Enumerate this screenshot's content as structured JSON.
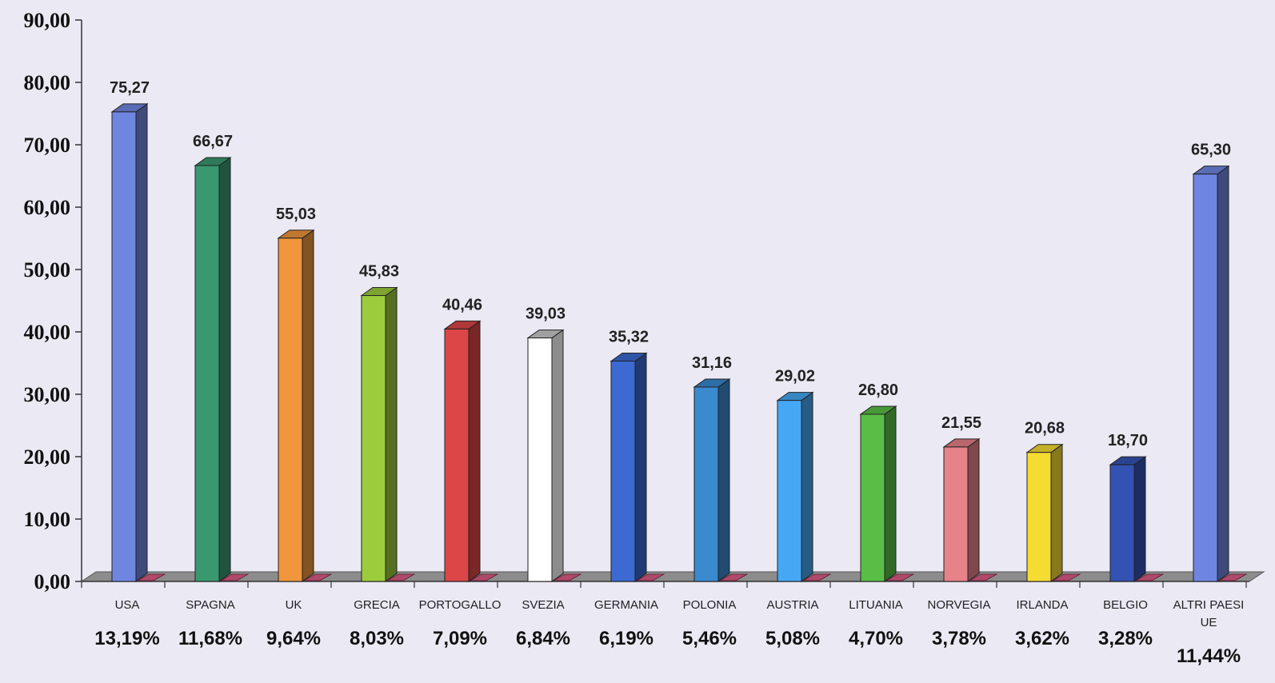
{
  "chart_data": {
    "type": "bar",
    "categories": [
      "USA",
      "SPAGNA",
      "UK",
      "GRECIA",
      "PORTOGALLO",
      "SVEZIA",
      "GERMANIA",
      "POLONIA",
      "AUSTRIA",
      "LITUANIA",
      "NORVEGIA",
      "IRLANDA",
      "BELGIO",
      "ALTRI PAESI UE"
    ],
    "category_lines": [
      [
        "USA"
      ],
      [
        "SPAGNA"
      ],
      [
        "UK"
      ],
      [
        "GRECIA"
      ],
      [
        "PORTOGALLO"
      ],
      [
        "SVEZIA"
      ],
      [
        "GERMANIA"
      ],
      [
        "POLONIA"
      ],
      [
        "AUSTRIA"
      ],
      [
        "LITUANIA"
      ],
      [
        "NORVEGIA"
      ],
      [
        "IRLANDA"
      ],
      [
        "BELGIO"
      ],
      [
        "ALTRI PAESI",
        "UE"
      ]
    ],
    "values": [
      75.27,
      66.67,
      55.03,
      45.83,
      40.46,
      39.03,
      35.32,
      31.16,
      29.02,
      26.8,
      21.55,
      20.68,
      18.7,
      65.3
    ],
    "value_labels": [
      "75,27",
      "66,67",
      "55,03",
      "45,83",
      "40,46",
      "39,03",
      "35,32",
      "31,16",
      "29,02",
      "26,80",
      "21,55",
      "20,68",
      "18,70",
      "65,30"
    ],
    "percentages": [
      "13,19%",
      "11,68%",
      "9,64%",
      "8,03%",
      "7,09%",
      "6,84%",
      "6,19%",
      "5,46%",
      "5,08%",
      "4,70%",
      "3,78%",
      "3,62%",
      "3,28%",
      "11,44%"
    ],
    "colors": [
      "#6f86e0",
      "#3a9870",
      "#f0963c",
      "#9ccc3c",
      "#dc4646",
      "#ffffff",
      "#3c6ad2",
      "#3a8ad0",
      "#46a8f5",
      "#5abe46",
      "#e68288",
      "#f5dc32",
      "#3452b4",
      "#6f86e0"
    ],
    "ylim": [
      0,
      90
    ],
    "yticks": [
      0,
      10,
      20,
      30,
      40,
      50,
      60,
      70,
      80,
      90
    ],
    "ytick_labels": [
      "0,00",
      "10,00",
      "20,00",
      "30,00",
      "40,00",
      "50,00",
      "60,00",
      "70,00",
      "80,00",
      "90,00"
    ],
    "grid": false,
    "title": "",
    "xlabel": "",
    "ylabel": ""
  }
}
